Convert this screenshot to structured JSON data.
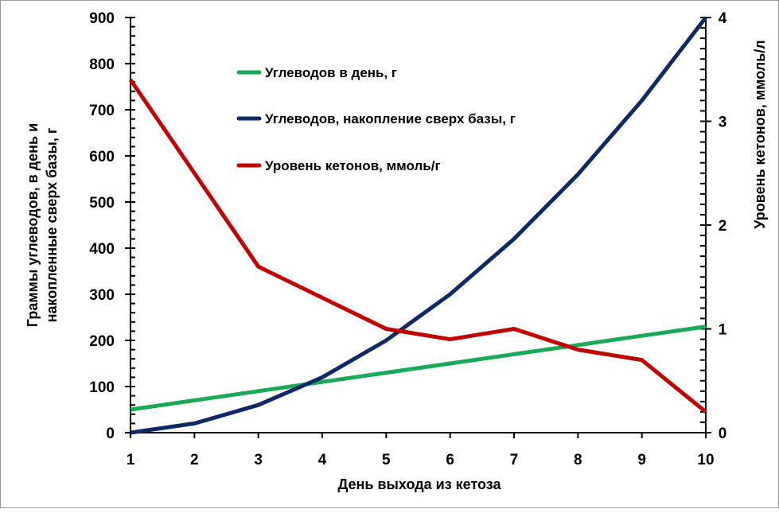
{
  "chart_data": {
    "type": "line",
    "title": "",
    "xlabel": "День выхода из кетоза",
    "ylabel": "Граммы углеводов, в день и накопленные сверх базы, г",
    "ylabel_lines": [
      "Граммы углеводов, в день и",
      "накопленные сверх базы, г"
    ],
    "y2label": "Уровень кетонов, ммоль/л",
    "x": [
      1,
      2,
      3,
      4,
      5,
      6,
      7,
      8,
      9,
      10
    ],
    "xlim": [
      1,
      10
    ],
    "ylim": [
      0,
      900
    ],
    "y2lim": [
      0,
      4
    ],
    "x_ticks": [
      "1",
      "2",
      "3",
      "4",
      "5",
      "6",
      "7",
      "8",
      "9",
      "10"
    ],
    "y_ticks": [
      "0",
      "100",
      "200",
      "300",
      "400",
      "500",
      "600",
      "700",
      "800",
      "900"
    ],
    "y2_ticks": [
      "0",
      "1",
      "2",
      "3",
      "4"
    ],
    "grid": false,
    "legend_position": "upper-left-inside",
    "series": [
      {
        "name": "Углеводов в день, г",
        "axis": "left",
        "color": "#1aaa55",
        "values": [
          50,
          70,
          90,
          110,
          130,
          150,
          170,
          190,
          210,
          230
        ]
      },
      {
        "name": "Углеводов, накопление сверх базы, г",
        "axis": "left",
        "color": "#0d2a66",
        "values": [
          0,
          20,
          60,
          120,
          200,
          300,
          420,
          560,
          720,
          900
        ]
      },
      {
        "name": "Уровень кетонов, ммоль/г",
        "axis": "right",
        "color": "#c00000",
        "values": [
          3.4,
          2.5,
          1.6,
          1.3,
          1.0,
          0.9,
          1.0,
          0.8,
          0.7,
          0.2
        ]
      }
    ]
  }
}
